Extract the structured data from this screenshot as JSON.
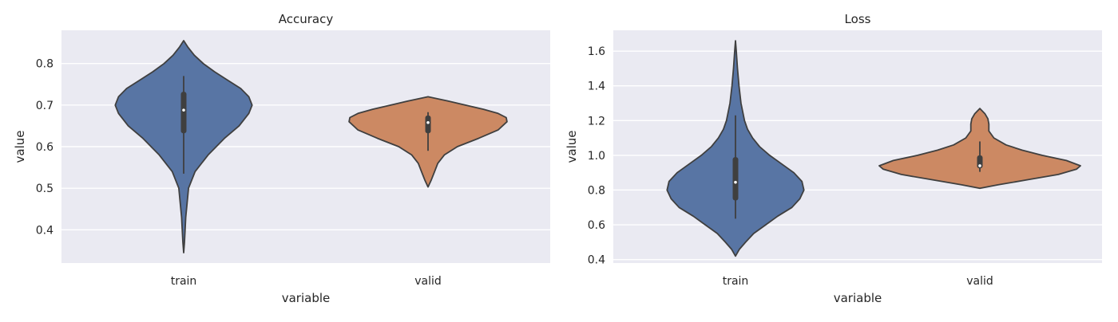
{
  "chart_data": [
    {
      "type": "violin",
      "title": "Accuracy",
      "xlabel": "variable",
      "ylabel": "value",
      "categories": [
        "train",
        "valid"
      ],
      "ylim": [
        0.32,
        0.88
      ],
      "yticks": [
        0.4,
        0.5,
        0.6,
        0.7,
        0.8
      ],
      "ytick_labels": [
        "0.4",
        "0.5",
        "0.6",
        "0.7",
        "0.8"
      ],
      "grid": true,
      "violins": [
        {
          "category": "train",
          "color": "#5875A4",
          "min": 0.345,
          "max": 0.855,
          "q1": 0.632,
          "median": 0.688,
          "q3": 0.732,
          "whisker_low": 0.535,
          "whisker_high": 0.77,
          "density": [
            [
              0.345,
              0.0
            ],
            [
              0.37,
              0.01
            ],
            [
              0.4,
              0.018
            ],
            [
              0.43,
              0.025
            ],
            [
              0.46,
              0.04
            ],
            [
              0.5,
              0.06
            ],
            [
              0.54,
              0.14
            ],
            [
              0.58,
              0.3
            ],
            [
              0.62,
              0.5
            ],
            [
              0.65,
              0.68
            ],
            [
              0.68,
              0.8
            ],
            [
              0.7,
              0.84
            ],
            [
              0.72,
              0.8
            ],
            [
              0.74,
              0.7
            ],
            [
              0.76,
              0.54
            ],
            [
              0.78,
              0.38
            ],
            [
              0.8,
              0.24
            ],
            [
              0.82,
              0.13
            ],
            [
              0.84,
              0.05
            ],
            [
              0.855,
              0.0
            ]
          ]
        },
        {
          "category": "valid",
          "color": "#CC8963",
          "min": 0.503,
          "max": 0.72,
          "q1": 0.632,
          "median": 0.658,
          "q3": 0.675,
          "whisker_low": 0.59,
          "whisker_high": 0.683,
          "density": [
            [
              0.503,
              0.0
            ],
            [
              0.52,
              0.04
            ],
            [
              0.54,
              0.08
            ],
            [
              0.56,
              0.12
            ],
            [
              0.58,
              0.2
            ],
            [
              0.6,
              0.36
            ],
            [
              0.62,
              0.62
            ],
            [
              0.64,
              0.86
            ],
            [
              0.66,
              0.97
            ],
            [
              0.67,
              0.96
            ],
            [
              0.68,
              0.86
            ],
            [
              0.69,
              0.68
            ],
            [
              0.7,
              0.46
            ],
            [
              0.71,
              0.24
            ],
            [
              0.72,
              0.0
            ]
          ]
        }
      ]
    },
    {
      "type": "violin",
      "title": "Loss",
      "xlabel": "variable",
      "ylabel": "value",
      "categories": [
        "train",
        "valid"
      ],
      "ylim": [
        0.38,
        1.72
      ],
      "yticks": [
        0.4,
        0.6,
        0.8,
        1.0,
        1.2,
        1.4,
        1.6
      ],
      "ytick_labels": [
        "0.4",
        "0.6",
        "0.8",
        "1.0",
        "1.2",
        "1.4",
        "1.6"
      ],
      "grid": true,
      "violins": [
        {
          "category": "train",
          "color": "#5875A4",
          "min": 0.42,
          "max": 1.66,
          "q1": 0.74,
          "median": 0.845,
          "q3": 0.99,
          "whisker_low": 0.635,
          "whisker_high": 1.23,
          "density": [
            [
              0.42,
              0.0
            ],
            [
              0.46,
              0.04
            ],
            [
              0.5,
              0.1
            ],
            [
              0.55,
              0.18
            ],
            [
              0.6,
              0.3
            ],
            [
              0.65,
              0.42
            ],
            [
              0.7,
              0.56
            ],
            [
              0.75,
              0.64
            ],
            [
              0.8,
              0.68
            ],
            [
              0.85,
              0.66
            ],
            [
              0.9,
              0.58
            ],
            [
              0.95,
              0.46
            ],
            [
              1.0,
              0.34
            ],
            [
              1.05,
              0.24
            ],
            [
              1.1,
              0.17
            ],
            [
              1.15,
              0.12
            ],
            [
              1.2,
              0.09
            ],
            [
              1.3,
              0.055
            ],
            [
              1.4,
              0.035
            ],
            [
              1.5,
              0.02
            ],
            [
              1.6,
              0.008
            ],
            [
              1.66,
              0.0
            ]
          ]
        },
        {
          "category": "valid",
          "color": "#CC8963",
          "min": 0.81,
          "max": 1.27,
          "q1": 0.925,
          "median": 0.94,
          "q3": 1.0,
          "whisker_low": 0.905,
          "whisker_high": 1.08,
          "density": [
            [
              0.81,
              0.0
            ],
            [
              0.83,
              0.18
            ],
            [
              0.86,
              0.48
            ],
            [
              0.89,
              0.78
            ],
            [
              0.92,
              0.96
            ],
            [
              0.94,
              1.0
            ],
            [
              0.97,
              0.86
            ],
            [
              1.0,
              0.62
            ],
            [
              1.03,
              0.42
            ],
            [
              1.06,
              0.26
            ],
            [
              1.1,
              0.14
            ],
            [
              1.14,
              0.09
            ],
            [
              1.18,
              0.09
            ],
            [
              1.21,
              0.08
            ],
            [
              1.24,
              0.05
            ],
            [
              1.27,
              0.0
            ]
          ]
        }
      ]
    }
  ]
}
